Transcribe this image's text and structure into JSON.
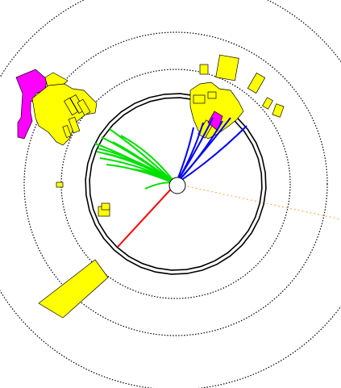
{
  "colors": {
    "background": "#ffffff",
    "detector_ring": "#000000",
    "dotted_ring": "#000000",
    "green_tracks": "#00e000",
    "blue_tracks": "#0000ff",
    "red_track": "#ff0000",
    "orange_line": "#ffa040",
    "yellow_towers": "#ffff00",
    "magenta_towers": "#ff00ff",
    "tower_outline": "#000000"
  },
  "track_groups": [
    {
      "name": "green-tracks",
      "count": 12
    },
    {
      "name": "blue-tracks",
      "count": 6
    },
    {
      "name": "red-track",
      "count": 1
    }
  ]
}
